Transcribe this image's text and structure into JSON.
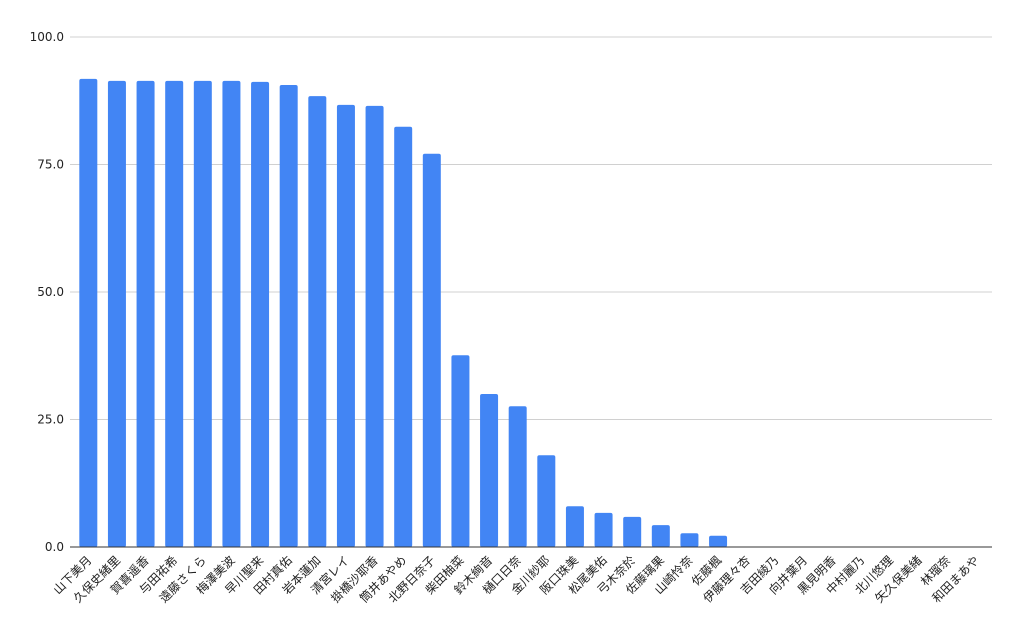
{
  "chart_data": {
    "type": "bar",
    "categories": [
      "山下美月",
      "久保史緒里",
      "賀喜遥香",
      "与田祐希",
      "遠藤さくら",
      "梅澤美波",
      "早川聖来",
      "田村真佑",
      "岩本蓮加",
      "清宮レイ",
      "掛橋沙耶香",
      "筒井あやめ",
      "北野日奈子",
      "柴田柚菜",
      "鈴木絢音",
      "樋口日奈",
      "金川紗耶",
      "阪口珠美",
      "松尾美佑",
      "弓木奈於",
      "佐藤璃果",
      "山崎怜奈",
      "佐藤楓",
      "伊藤理々杏",
      "吉田綾乃",
      "向井葉月",
      "黒見明香",
      "中村麗乃",
      "北川悠理",
      "矢久保美緒",
      "林瑠奈",
      "和田まあや"
    ],
    "values": [
      91.8,
      91.4,
      91.4,
      91.4,
      91.4,
      91.4,
      91.2,
      90.6,
      88.4,
      86.7,
      86.5,
      82.4,
      77.1,
      37.6,
      30.0,
      27.6,
      18.0,
      8.0,
      6.7,
      5.9,
      4.3,
      2.7,
      2.2,
      0,
      0,
      0,
      0,
      0,
      0,
      0,
      0,
      0
    ],
    "color": "#4285f4",
    "ylim": [
      0,
      100
    ],
    "yticks": [
      {
        "value": 0,
        "label": "0.0"
      },
      {
        "value": 25,
        "label": "25.0"
      },
      {
        "value": 50,
        "label": "50.0"
      },
      {
        "value": 75,
        "label": "75.0"
      },
      {
        "value": 100,
        "label": "100.0"
      }
    ],
    "grid": true
  }
}
